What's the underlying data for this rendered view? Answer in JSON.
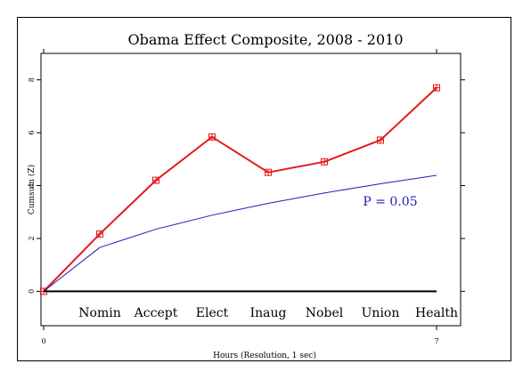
{
  "chart_data": {
    "type": "line",
    "title": "Obama Effect Composite, 2008 - 2010",
    "xlabel": "Hours (Resolution, 1 sec)",
    "ylabel": "Cumsum (Z)",
    "xlim": [
      0,
      7
    ],
    "ylim": [
      -1.3,
      9.0
    ],
    "x_ticks": [
      0,
      7
    ],
    "y_ticks": [
      0,
      2,
      4,
      6,
      8
    ],
    "event_labels": [
      "Nomin",
      "Accept",
      "Elect",
      "Inaug",
      "Nobel",
      "Union",
      "Health"
    ],
    "annotation": "P = 0.05",
    "series": [
      {
        "name": "",
        "color": "#e41a1c",
        "markers": "square",
        "x": [
          0,
          1,
          2,
          3,
          4,
          5,
          6,
          7
        ],
        "values": [
          0,
          2.17,
          4.2,
          5.84,
          4.5,
          4.9,
          5.72,
          7.7
        ]
      },
      {
        "name": "",
        "color": "#1f1fb4",
        "x": [
          0,
          1,
          2,
          3,
          4,
          5,
          6,
          7
        ],
        "values": [
          0,
          1.66,
          2.35,
          2.88,
          3.33,
          3.72,
          4.07,
          4.39
        ]
      },
      {
        "name": "",
        "color": "#000000",
        "x": [
          0,
          7
        ],
        "values": [
          0,
          0
        ]
      }
    ]
  }
}
